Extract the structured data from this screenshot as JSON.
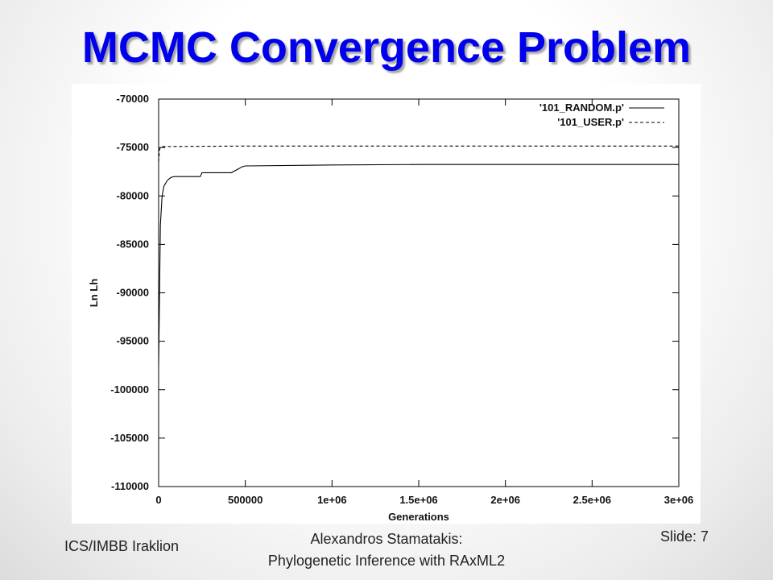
{
  "slide": {
    "title": "MCMC Convergence Problem",
    "footer_left": "ICS/IMBB Iraklion",
    "footer_center_line1": "Alexandros Stamatakis:",
    "footer_center_line2": "Phylogenetic Inference with RAxML2",
    "footer_right": "Slide: 7",
    "title_color": "#0000ee"
  },
  "chart_data": {
    "type": "line",
    "xlabel": "Generations",
    "ylabel": "Ln Lh",
    "xlim": [
      0,
      3000000
    ],
    "ylim": [
      -110000,
      -70000
    ],
    "x_ticks": [
      0,
      500000,
      1000000,
      1500000,
      2000000,
      2500000,
      3000000
    ],
    "x_tick_labels": [
      "0",
      "500000",
      "1e+06",
      "1.5e+06",
      "2e+06",
      "2.5e+06",
      "3e+06"
    ],
    "y_ticks": [
      -110000,
      -105000,
      -100000,
      -95000,
      -90000,
      -85000,
      -80000,
      -75000,
      -70000
    ],
    "y_tick_labels": [
      "-110000",
      "-105000",
      "-100000",
      "-95000",
      "-90000",
      "-85000",
      "-80000",
      "-75000",
      "-70000"
    ],
    "grid": false,
    "legend_position": "top-right",
    "series": [
      {
        "name": "'101_RANDOM.p'",
        "style": "solid",
        "x": [
          0,
          5000,
          10000,
          20000,
          30000,
          50000,
          70000,
          90000,
          100000,
          240000,
          250000,
          420000,
          440000,
          460000,
          480000,
          500000,
          1000000,
          1500000,
          2000000,
          2500000,
          3000000
        ],
        "y": [
          -97500,
          -90000,
          -83000,
          -80000,
          -79000,
          -78400,
          -78100,
          -78000,
          -78000,
          -78000,
          -77600,
          -77600,
          -77400,
          -77200,
          -77000,
          -76900,
          -76800,
          -76750,
          -76750,
          -76750,
          -76750
        ]
      },
      {
        "name": "'101_USER.p'",
        "style": "dashed",
        "x": [
          0,
          5000,
          10000,
          20000,
          50000,
          500000,
          1000000,
          1500000,
          2000000,
          2500000,
          3000000
        ],
        "y": [
          -76500,
          -75200,
          -75000,
          -74900,
          -74900,
          -74850,
          -74850,
          -74850,
          -74850,
          -74850,
          -74850
        ]
      }
    ]
  }
}
